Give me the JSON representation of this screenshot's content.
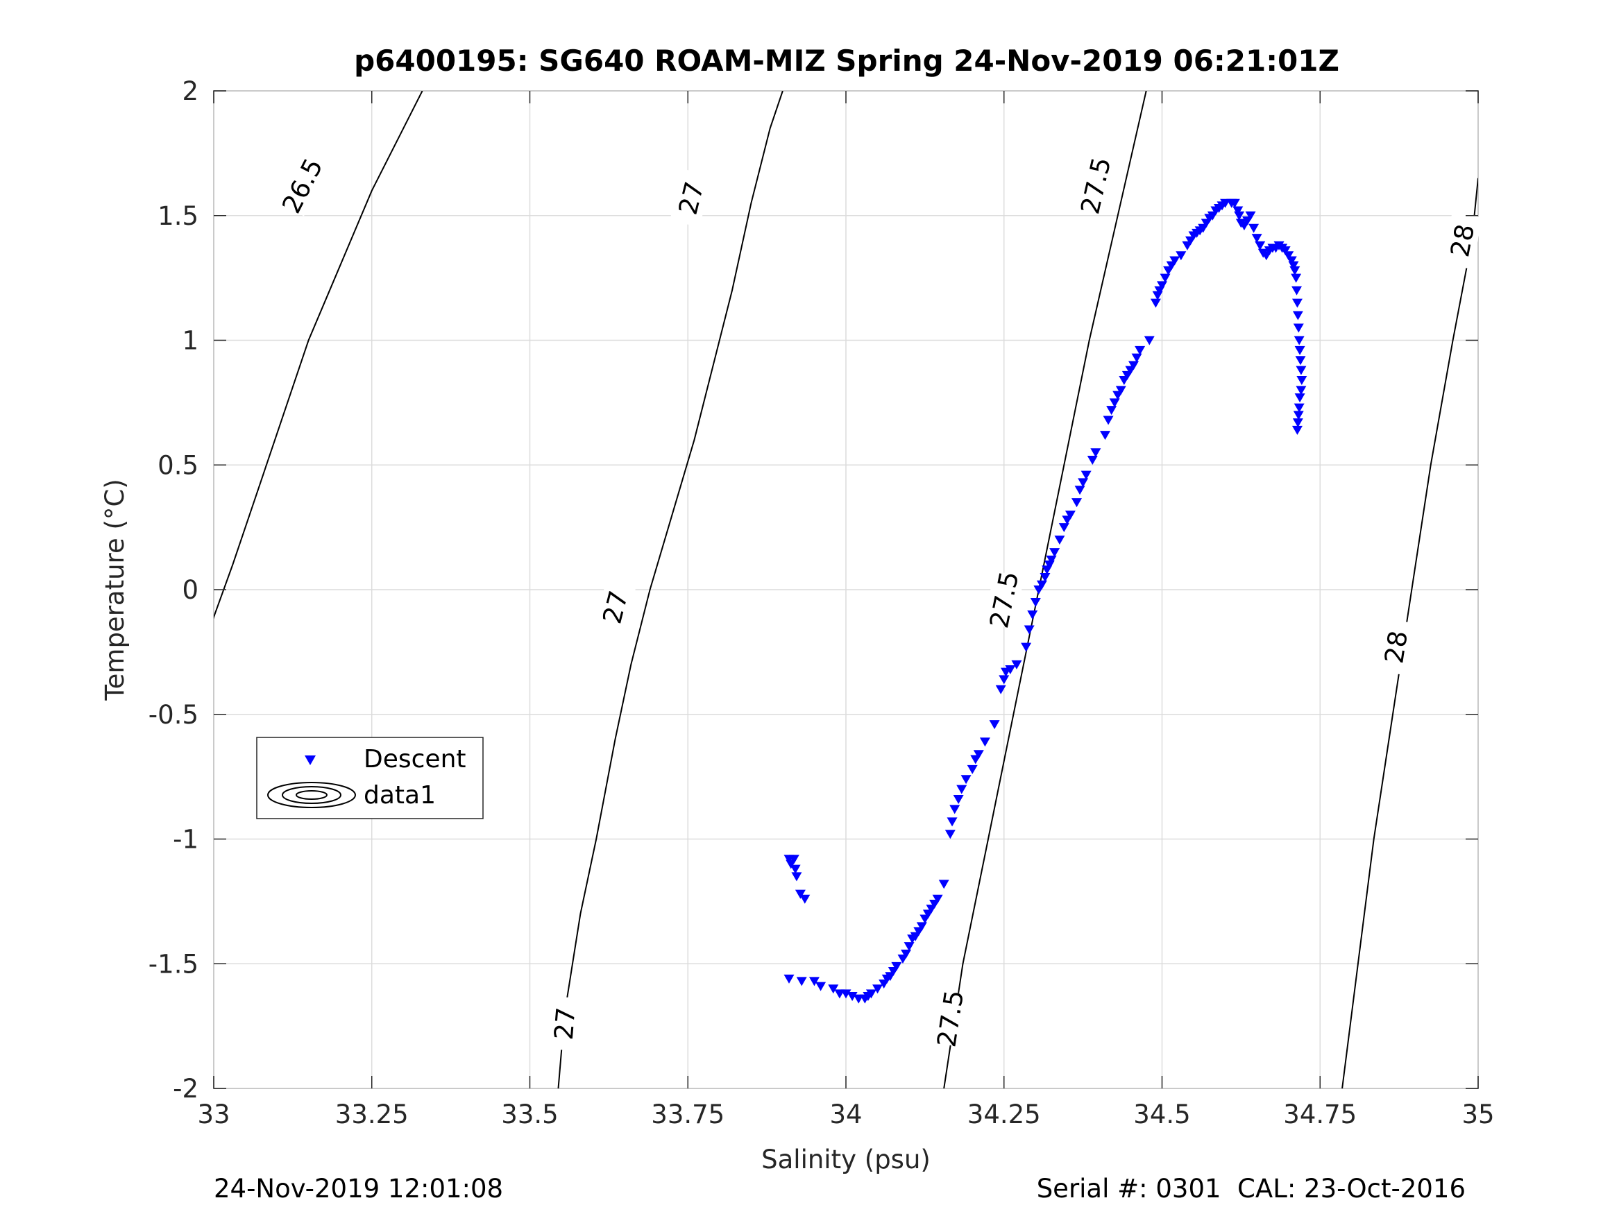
{
  "chart_data": {
    "type": "scatter",
    "title": "p6400195: SG640 ROAM-MIZ Spring 24-Nov-2019 06:21:01Z",
    "xlabel": "Salinity (psu)",
    "ylabel": "Temperature (°C)",
    "xlim": [
      33,
      35
    ],
    "ylim": [
      -2,
      2
    ],
    "xticks": [
      {
        "value": 33,
        "label": "33"
      },
      {
        "value": 33.25,
        "label": "33.25"
      },
      {
        "value": 33.5,
        "label": "33.5"
      },
      {
        "value": 33.75,
        "label": "33.75"
      },
      {
        "value": 34,
        "label": "34"
      },
      {
        "value": 34.25,
        "label": "34.25"
      },
      {
        "value": 34.5,
        "label": "34.5"
      },
      {
        "value": 34.75,
        "label": "34.75"
      },
      {
        "value": 35,
        "label": "35"
      }
    ],
    "yticks": [
      {
        "value": -2,
        "label": "-2"
      },
      {
        "value": -1.5,
        "label": "-1.5"
      },
      {
        "value": -1,
        "label": "-1"
      },
      {
        "value": -0.5,
        "label": "-0.5"
      },
      {
        "value": 0,
        "label": "0"
      },
      {
        "value": 0.5,
        "label": "0.5"
      },
      {
        "value": 1,
        "label": "1"
      },
      {
        "value": 1.5,
        "label": "1.5"
      },
      {
        "value": 2,
        "label": "2"
      }
    ],
    "grid": true,
    "legend_position": "lower-left",
    "legend": [
      {
        "label": "Descent",
        "marker": "triangle-down",
        "color": "#0000ff"
      },
      {
        "label": "data1",
        "marker": "contour",
        "color": "#000000"
      }
    ],
    "contours": [
      {
        "level": "26.5",
        "points": [
          [
            32.99,
            -0.18
          ],
          [
            33.03,
            0.1
          ],
          [
            33.07,
            0.4
          ],
          [
            33.11,
            0.7
          ],
          [
            33.15,
            1.0
          ],
          [
            33.2,
            1.3
          ],
          [
            33.25,
            1.6
          ],
          [
            33.3,
            1.85
          ],
          [
            33.33,
            2.0
          ]
        ],
        "labels": [
          {
            "s": 33.14,
            "t": 1.62
          }
        ]
      },
      {
        "level": "27",
        "points": [
          [
            33.545,
            -2.0
          ],
          [
            33.555,
            -1.7
          ],
          [
            33.58,
            -1.3
          ],
          [
            33.605,
            -1.0
          ],
          [
            33.635,
            -0.6
          ],
          [
            33.66,
            -0.3
          ],
          [
            33.69,
            0.0
          ],
          [
            33.725,
            0.3
          ],
          [
            33.76,
            0.6
          ],
          [
            33.79,
            0.9
          ],
          [
            33.82,
            1.2
          ],
          [
            33.85,
            1.55
          ],
          [
            33.88,
            1.85
          ],
          [
            33.9,
            2.0
          ]
        ],
        "labels": [
          {
            "s": 33.555,
            "t": -1.74
          },
          {
            "s": 33.635,
            "t": -0.07
          },
          {
            "s": 33.755,
            "t": 1.57
          }
        ]
      },
      {
        "level": "27.5",
        "points": [
          [
            34.155,
            -2.0
          ],
          [
            34.185,
            -1.5
          ],
          [
            34.225,
            -1.0
          ],
          [
            34.265,
            -0.5
          ],
          [
            34.305,
            0.0
          ],
          [
            34.345,
            0.5
          ],
          [
            34.385,
            1.0
          ],
          [
            34.43,
            1.5
          ],
          [
            34.475,
            2.0
          ]
        ],
        "labels": [
          {
            "s": 34.165,
            "t": -1.72
          },
          {
            "s": 34.25,
            "t": -0.04
          },
          {
            "s": 34.395,
            "t": 1.62
          }
        ]
      },
      {
        "level": "28",
        "points": [
          [
            34.785,
            -2.0
          ],
          [
            34.81,
            -1.5
          ],
          [
            34.835,
            -1.0
          ],
          [
            34.865,
            -0.5
          ],
          [
            34.895,
            0.0
          ],
          [
            34.925,
            0.5
          ],
          [
            34.96,
            1.0
          ],
          [
            34.99,
            1.4
          ],
          [
            35.0,
            1.65
          ]
        ],
        "labels": [
          {
            "s": 34.87,
            "t": -0.23
          },
          {
            "s": 34.975,
            "t": 1.4
          }
        ]
      }
    ],
    "series": [
      {
        "name": "Descent",
        "marker": "triangle-down",
        "color": "#0000ff",
        "points": [
          [
            33.91,
            -1.08
          ],
          [
            33.913,
            -1.1
          ],
          [
            33.918,
            -1.08
          ],
          [
            33.92,
            -1.12
          ],
          [
            33.922,
            -1.15
          ],
          [
            33.928,
            -1.22
          ],
          [
            33.935,
            -1.24
          ],
          [
            33.91,
            -1.56
          ],
          [
            33.93,
            -1.57
          ],
          [
            33.95,
            -1.57
          ],
          [
            33.96,
            -1.59
          ],
          [
            33.98,
            -1.6
          ],
          [
            33.99,
            -1.62
          ],
          [
            34.0,
            -1.62
          ],
          [
            34.01,
            -1.63
          ],
          [
            34.02,
            -1.64
          ],
          [
            34.03,
            -1.64
          ],
          [
            34.035,
            -1.63
          ],
          [
            34.04,
            -1.62
          ],
          [
            34.05,
            -1.6
          ],
          [
            34.06,
            -1.58
          ],
          [
            34.065,
            -1.56
          ],
          [
            34.07,
            -1.55
          ],
          [
            34.075,
            -1.53
          ],
          [
            34.08,
            -1.51
          ],
          [
            34.09,
            -1.48
          ],
          [
            34.095,
            -1.46
          ],
          [
            34.1,
            -1.43
          ],
          [
            34.105,
            -1.4
          ],
          [
            34.11,
            -1.39
          ],
          [
            34.115,
            -1.37
          ],
          [
            34.12,
            -1.35
          ],
          [
            34.125,
            -1.32
          ],
          [
            34.13,
            -1.3
          ],
          [
            34.135,
            -1.28
          ],
          [
            34.14,
            -1.26
          ],
          [
            34.145,
            -1.24
          ],
          [
            34.155,
            -1.18
          ],
          [
            34.165,
            -0.98
          ],
          [
            34.168,
            -0.93
          ],
          [
            34.172,
            -0.88
          ],
          [
            34.178,
            -0.84
          ],
          [
            34.183,
            -0.8
          ],
          [
            34.19,
            -0.76
          ],
          [
            34.2,
            -0.72
          ],
          [
            34.205,
            -0.68
          ],
          [
            34.21,
            -0.66
          ],
          [
            34.22,
            -0.61
          ],
          [
            34.235,
            -0.54
          ],
          [
            34.245,
            -0.4
          ],
          [
            34.25,
            -0.36
          ],
          [
            34.253,
            -0.33
          ],
          [
            34.26,
            -0.32
          ],
          [
            34.27,
            -0.3
          ],
          [
            34.285,
            -0.23
          ],
          [
            34.29,
            -0.16
          ],
          [
            34.295,
            -0.1
          ],
          [
            34.3,
            -0.05
          ],
          [
            34.305,
            0.0
          ],
          [
            34.31,
            0.02
          ],
          [
            34.315,
            0.05
          ],
          [
            34.318,
            0.08
          ],
          [
            34.322,
            0.1
          ],
          [
            34.325,
            0.12
          ],
          [
            34.33,
            0.15
          ],
          [
            34.338,
            0.2
          ],
          [
            34.345,
            0.25
          ],
          [
            34.35,
            0.28
          ],
          [
            34.355,
            0.3
          ],
          [
            34.365,
            0.35
          ],
          [
            34.37,
            0.4
          ],
          [
            34.375,
            0.43
          ],
          [
            34.38,
            0.46
          ],
          [
            34.39,
            0.52
          ],
          [
            34.395,
            0.55
          ],
          [
            34.41,
            0.62
          ],
          [
            34.415,
            0.68
          ],
          [
            34.42,
            0.72
          ],
          [
            34.425,
            0.75
          ],
          [
            34.43,
            0.78
          ],
          [
            34.435,
            0.8
          ],
          [
            34.44,
            0.84
          ],
          [
            34.445,
            0.86
          ],
          [
            34.45,
            0.88
          ],
          [
            34.455,
            0.9
          ],
          [
            34.46,
            0.93
          ],
          [
            34.465,
            0.96
          ],
          [
            34.48,
            1.0
          ],
          [
            34.49,
            1.15
          ],
          [
            34.493,
            1.18
          ],
          [
            34.496,
            1.2
          ],
          [
            34.5,
            1.22
          ],
          [
            34.505,
            1.25
          ],
          [
            34.51,
            1.28
          ],
          [
            34.515,
            1.3
          ],
          [
            34.52,
            1.32
          ],
          [
            34.53,
            1.34
          ],
          [
            34.54,
            1.38
          ],
          [
            34.545,
            1.4
          ],
          [
            34.55,
            1.42
          ],
          [
            34.555,
            1.43
          ],
          [
            34.56,
            1.44
          ],
          [
            34.565,
            1.45
          ],
          [
            34.57,
            1.47
          ],
          [
            34.575,
            1.49
          ],
          [
            34.58,
            1.5
          ],
          [
            34.585,
            1.52
          ],
          [
            34.59,
            1.53
          ],
          [
            34.595,
            1.54
          ],
          [
            34.6,
            1.55
          ],
          [
            34.61,
            1.55
          ],
          [
            34.615,
            1.55
          ],
          [
            34.62,
            1.52
          ],
          [
            34.622,
            1.5
          ],
          [
            34.625,
            1.47
          ],
          [
            34.63,
            1.46
          ],
          [
            34.635,
            1.48
          ],
          [
            34.64,
            1.5
          ],
          [
            34.645,
            1.45
          ],
          [
            34.65,
            1.41
          ],
          [
            34.655,
            1.38
          ],
          [
            34.66,
            1.35
          ],
          [
            34.665,
            1.34
          ],
          [
            34.67,
            1.36
          ],
          [
            34.675,
            1.37
          ],
          [
            34.68,
            1.37
          ],
          [
            34.685,
            1.38
          ],
          [
            34.69,
            1.37
          ],
          [
            34.695,
            1.36
          ],
          [
            34.7,
            1.34
          ],
          [
            34.705,
            1.32
          ],
          [
            34.708,
            1.3
          ],
          [
            34.71,
            1.28
          ],
          [
            34.712,
            1.25
          ],
          [
            34.713,
            1.2
          ],
          [
            34.714,
            1.15
          ],
          [
            34.715,
            1.1
          ],
          [
            34.716,
            1.05
          ],
          [
            34.717,
            1.0
          ],
          [
            34.718,
            0.96
          ],
          [
            34.719,
            0.92
          ],
          [
            34.72,
            0.88
          ],
          [
            34.721,
            0.84
          ],
          [
            34.72,
            0.8
          ],
          [
            34.718,
            0.77
          ],
          [
            34.717,
            0.73
          ],
          [
            34.716,
            0.7
          ],
          [
            34.715,
            0.67
          ],
          [
            34.714,
            0.64
          ]
        ]
      }
    ]
  },
  "footer": {
    "timestamp": "24-Nov-2019 12:01:08",
    "serial": "Serial #: 0301  CAL: 23-Oct-2016"
  }
}
